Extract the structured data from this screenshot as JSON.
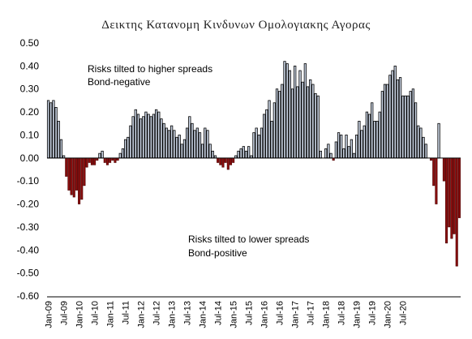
{
  "chart_data": {
    "type": "bar",
    "title": "Δεικτης Κατανομη Κινδυνων Ομολογιακης Αγορας",
    "xlabel": "",
    "ylabel": "",
    "ylim": [
      -0.6,
      0.5
    ],
    "yticks": [
      "0.50",
      "0.40",
      "0.30",
      "0.20",
      "0.10",
      "0.00",
      "-0.10",
      "-0.20",
      "-0.30",
      "-0.40",
      "-0.50",
      "-0.60"
    ],
    "xticks": [
      "Jan-09",
      "Jul-09",
      "Jan-10",
      "Jul-10",
      "Jan-11",
      "Jul-11",
      "Jan-12",
      "Jul-12",
      "Jan-13",
      "Jul-13",
      "Jan-14",
      "Jul-14",
      "Jan-15",
      "Jul-15",
      "Jan-16",
      "Jul-16",
      "Jan-17",
      "Jul-17",
      "Jan-18",
      "Jul-18",
      "Jan-19",
      "Jul-19",
      "Jan-20",
      "Jul-20"
    ],
    "x_start": "Jan-09",
    "frequency": "monthly",
    "positive_color": "#c9d3e3",
    "negative_color": "#8b0e0e",
    "annotations": [
      {
        "text": "Risks tilted to higher spreads",
        "position": "upper-left"
      },
      {
        "text": "Bond-negative",
        "position": "upper-left"
      },
      {
        "text": "Risks tilted to lower spreads",
        "position": "lower-center"
      },
      {
        "text": "Bond-positive",
        "position": "lower-center"
      }
    ],
    "values": [
      0.25,
      0.24,
      0.25,
      0.22,
      0.16,
      0.08,
      0.01,
      -0.08,
      -0.14,
      -0.16,
      -0.17,
      -0.14,
      -0.2,
      -0.18,
      -0.12,
      -0.04,
      -0.02,
      -0.03,
      -0.03,
      -0.01,
      0.02,
      0.03,
      -0.02,
      -0.03,
      -0.02,
      -0.01,
      -0.02,
      -0.01,
      0.02,
      0.04,
      0.08,
      0.09,
      0.14,
      0.18,
      0.21,
      0.19,
      0.17,
      0.18,
      0.2,
      0.19,
      0.18,
      0.19,
      0.21,
      0.2,
      0.17,
      0.15,
      0.13,
      0.12,
      0.14,
      0.12,
      0.09,
      0.1,
      0.06,
      0.08,
      0.13,
      0.18,
      0.15,
      0.12,
      0.13,
      0.11,
      0.06,
      0.13,
      0.12,
      0.06,
      0.03,
      0.01,
      -0.02,
      -0.03,
      -0.04,
      -0.02,
      -0.05,
      -0.03,
      -0.02,
      0.01,
      0.03,
      0.04,
      0.05,
      0.03,
      0.05,
      0.01,
      0.11,
      0.13,
      0.1,
      0.13,
      0.19,
      0.21,
      0.25,
      0.16,
      0.24,
      0.3,
      0.29,
      0.32,
      0.42,
      0.41,
      0.38,
      0.3,
      0.4,
      0.31,
      0.38,
      0.33,
      0.41,
      0.31,
      0.34,
      0.32,
      0.28,
      0.27,
      0.03,
      0.0,
      0.04,
      0.06,
      0.02,
      -0.01,
      0.07,
      0.11,
      0.1,
      0.04,
      0.1,
      0.05,
      0.08,
      0.02,
      0.1,
      0.16,
      0.12,
      0.14,
      0.2,
      0.19,
      0.24,
      0.16,
      0.16,
      0.2,
      0.29,
      0.32,
      0.32,
      0.36,
      0.38,
      0.4,
      0.34,
      0.35,
      0.27,
      0.27,
      0.27,
      0.29,
      0.3,
      0.24,
      0.14,
      0.13,
      0.09,
      0.06,
      0.0,
      -0.01,
      -0.12,
      -0.2,
      0.15,
      0.0,
      -0.1,
      -0.37,
      -0.3,
      -0.35,
      -0.33,
      -0.47,
      -0.26
    ]
  }
}
